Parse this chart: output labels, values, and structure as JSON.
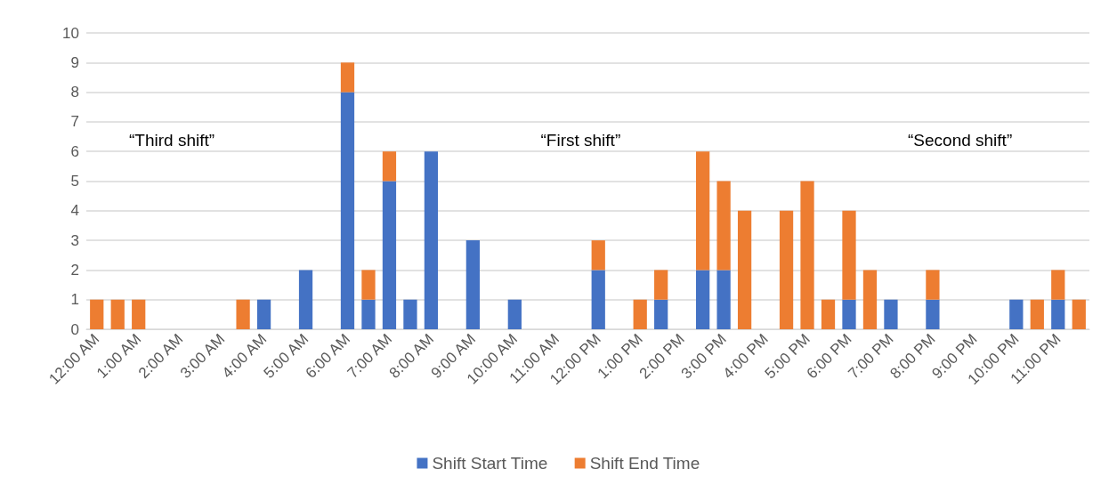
{
  "chart_data": {
    "type": "bar",
    "stacked": true,
    "categories": [
      "12:00 AM",
      null,
      "1:00 AM",
      null,
      "2:00 AM",
      null,
      "3:00 AM",
      null,
      "4:00 AM",
      null,
      "5:00 AM",
      null,
      "6:00 AM",
      null,
      "7:00 AM",
      null,
      "8:00 AM",
      null,
      "9:00 AM",
      null,
      "10:00 AM",
      null,
      "11:00 AM",
      null,
      "12:00 PM",
      null,
      "1:00 PM",
      null,
      "2:00 PM",
      null,
      "3:00 PM",
      null,
      "4:00 PM",
      null,
      "5:00 PM",
      null,
      "6:00 PM",
      null,
      "7:00 PM",
      null,
      "8:00 PM",
      null,
      "9:00 PM",
      null,
      "10:00 PM",
      null,
      "11:00 PM",
      null
    ],
    "series": [
      {
        "name": "Shift Start Time",
        "color": "#4472c4",
        "values": [
          0,
          0,
          0,
          0,
          0,
          0,
          0,
          0,
          1,
          0,
          2,
          0,
          8,
          1,
          5,
          1,
          6,
          0,
          3,
          0,
          1,
          0,
          0,
          0,
          2,
          0,
          0,
          1,
          0,
          2,
          2,
          0,
          0,
          0,
          0,
          0,
          1,
          0,
          1,
          0,
          1,
          0,
          0,
          0,
          1,
          0,
          1,
          0
        ]
      },
      {
        "name": "Shift End Time",
        "color": "#ed7d31",
        "values": [
          1,
          1,
          1,
          0,
          0,
          0,
          0,
          1,
          0,
          0,
          0,
          0,
          1,
          1,
          1,
          0,
          0,
          0,
          0,
          0,
          0,
          0,
          0,
          0,
          1,
          0,
          1,
          1,
          0,
          4,
          3,
          4,
          0,
          4,
          5,
          1,
          3,
          2,
          0,
          0,
          1,
          0,
          0,
          0,
          0,
          1,
          1,
          1
        ]
      }
    ],
    "ylim": [
      0,
      10
    ],
    "yticks": [
      0,
      1,
      2,
      3,
      4,
      5,
      6,
      7,
      8,
      9,
      10
    ],
    "grid": "y",
    "legend": "bottom",
    "annotations": [
      "“Third shift”",
      "“First shift”",
      "“Second shift”"
    ]
  }
}
